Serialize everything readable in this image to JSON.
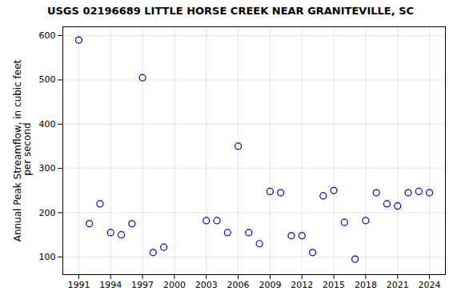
{
  "chart_data": {
    "type": "scatter",
    "title": "USGS 02196689 LITTLE HORSE CREEK NEAR GRANITEVILLE, SC",
    "ylabel": "Annual Peak Streamflow, in cubic feet\n per second",
    "x": [
      1991,
      1992,
      1993,
      1994,
      1995,
      1996,
      1997,
      1998,
      1999,
      2003,
      2004,
      2005,
      2006,
      2007,
      2008,
      2009,
      2010,
      2011,
      2012,
      2013,
      2014,
      2015,
      2016,
      2017,
      2018,
      2019,
      2020,
      2021,
      2022,
      2023,
      2024
    ],
    "values": [
      590,
      175,
      220,
      155,
      150,
      175,
      505,
      110,
      122,
      182,
      182,
      155,
      350,
      155,
      130,
      248,
      245,
      148,
      148,
      110,
      238,
      250,
      178,
      95,
      182,
      245,
      220,
      215,
      245,
      248,
      245
    ],
    "color": "#0000bb",
    "marker": "circle",
    "xlim": [
      1989.5,
      2025.5
    ],
    "ylim": [
      60,
      620
    ],
    "xticks": [
      1991,
      1994,
      1997,
      2000,
      2003,
      2006,
      2009,
      2012,
      2015,
      2018,
      2021,
      2024
    ],
    "yticks": [
      100,
      200,
      300,
      400,
      500,
      600
    ],
    "grid": true
  }
}
